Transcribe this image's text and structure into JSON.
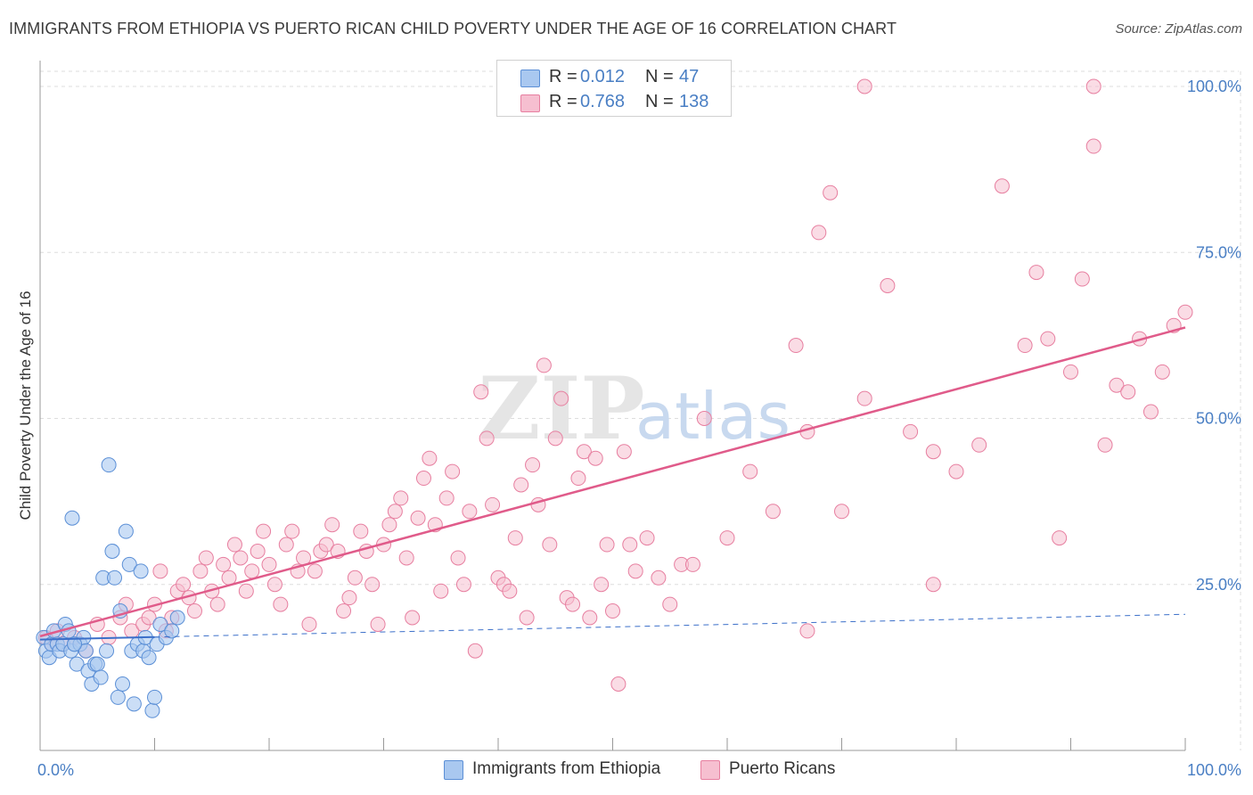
{
  "title": "IMMIGRANTS FROM ETHIOPIA VS PUERTO RICAN CHILD POVERTY UNDER THE AGE OF 16 CORRELATION CHART",
  "source": "Source: ZipAtlas.com",
  "watermark": {
    "zip": "ZIP",
    "atlas": "atlas"
  },
  "colors": {
    "ethiopia_fill": "#a9c8f0",
    "ethiopia_stroke": "#5b8fd6",
    "ethiopia_line": "#3b6fc9",
    "puerto_fill": "#f6bfd0",
    "puerto_stroke": "#e77fa0",
    "puerto_line": "#e05b8a",
    "axis_text": "#4a7fc4",
    "grid": "#dddddd"
  },
  "legend_top": [
    {
      "r_label": "R =",
      "r_value": "0.012",
      "n_label": "N =",
      "n_value": "47"
    },
    {
      "r_label": "R =",
      "r_value": "0.768",
      "n_label": "N =",
      "n_value": "138"
    }
  ],
  "legend_bottom": [
    "Immigrants from Ethiopia",
    "Puerto Ricans"
  ],
  "chart_data": {
    "type": "scatter",
    "title": "IMMIGRANTS FROM ETHIOPIA VS PUERTO RICAN CHILD POVERTY UNDER THE AGE OF 16 CORRELATION CHART",
    "xlabel": "",
    "ylabel": "Child Poverty Under the Age of 16",
    "xlim": [
      0,
      100
    ],
    "ylim": [
      0,
      100
    ],
    "x_tick_labels": [
      "0.0%",
      "100.0%"
    ],
    "y_tick_labels": [
      "25.0%",
      "50.0%",
      "75.0%",
      "100.0%"
    ],
    "y_ticks": [
      25,
      50,
      75,
      100
    ],
    "grid": true,
    "series": [
      {
        "name": "Immigrants from Ethiopia",
        "R": 0.012,
        "N": 47,
        "trend": {
          "x0": 0,
          "y0": 16.7,
          "x1": 100,
          "y1": 20.5,
          "solid_until": 10
        },
        "points": [
          [
            0.3,
            17
          ],
          [
            0.5,
            15
          ],
          [
            0.8,
            14
          ],
          [
            1.0,
            16
          ],
          [
            1.2,
            18
          ],
          [
            1.5,
            16
          ],
          [
            1.7,
            15
          ],
          [
            2.0,
            16
          ],
          [
            2.2,
            19
          ],
          [
            2.5,
            18
          ],
          [
            2.7,
            15
          ],
          [
            3.0,
            16
          ],
          [
            3.2,
            13
          ],
          [
            3.5,
            16
          ],
          [
            3.8,
            17
          ],
          [
            4.0,
            15
          ],
          [
            4.2,
            12
          ],
          [
            4.5,
            10
          ],
          [
            4.8,
            13
          ],
          [
            5.0,
            13
          ],
          [
            5.3,
            11
          ],
          [
            5.5,
            26
          ],
          [
            5.8,
            15
          ],
          [
            6.0,
            43
          ],
          [
            6.3,
            30
          ],
          [
            6.5,
            26
          ],
          [
            6.8,
            8
          ],
          [
            7.0,
            21
          ],
          [
            7.2,
            10
          ],
          [
            7.5,
            33
          ],
          [
            7.8,
            28
          ],
          [
            8.0,
            15
          ],
          [
            8.2,
            7
          ],
          [
            8.5,
            16
          ],
          [
            8.8,
            27
          ],
          [
            9.0,
            15
          ],
          [
            9.2,
            17
          ],
          [
            9.5,
            14
          ],
          [
            9.8,
            6
          ],
          [
            10.0,
            8
          ],
          [
            10.2,
            16
          ],
          [
            10.5,
            19
          ],
          [
            11.0,
            17
          ],
          [
            11.5,
            18
          ],
          [
            12.0,
            20
          ],
          [
            2.8,
            35
          ],
          [
            3.0,
            16
          ]
        ]
      },
      {
        "name": "Puerto Ricans",
        "R": 0.768,
        "N": 138,
        "trend": {
          "x0": 0,
          "y0": 17.2,
          "x1": 100,
          "y1": 63.7
        },
        "points": [
          [
            0.5,
            17
          ],
          [
            1.0,
            16
          ],
          [
            1.5,
            18
          ],
          [
            2.0,
            16
          ],
          [
            3.0,
            17
          ],
          [
            4.0,
            15
          ],
          [
            5.0,
            19
          ],
          [
            6.0,
            17
          ],
          [
            7.0,
            20
          ],
          [
            7.5,
            22
          ],
          [
            8.0,
            18
          ],
          [
            9.0,
            19
          ],
          [
            9.5,
            20
          ],
          [
            10.0,
            22
          ],
          [
            10.5,
            27
          ],
          [
            11.0,
            18
          ],
          [
            11.5,
            20
          ],
          [
            12.0,
            24
          ],
          [
            12.5,
            25
          ],
          [
            13.0,
            23
          ],
          [
            13.5,
            21
          ],
          [
            14.0,
            27
          ],
          [
            14.5,
            29
          ],
          [
            15.0,
            24
          ],
          [
            15.5,
            22
          ],
          [
            16.0,
            28
          ],
          [
            16.5,
            26
          ],
          [
            17.0,
            31
          ],
          [
            17.5,
            29
          ],
          [
            18.0,
            24
          ],
          [
            18.5,
            27
          ],
          [
            19.0,
            30
          ],
          [
            19.5,
            33
          ],
          [
            20.0,
            28
          ],
          [
            20.5,
            25
          ],
          [
            21.0,
            22
          ],
          [
            21.5,
            31
          ],
          [
            22.0,
            33
          ],
          [
            22.5,
            27
          ],
          [
            23.0,
            29
          ],
          [
            23.5,
            19
          ],
          [
            24.0,
            27
          ],
          [
            24.5,
            30
          ],
          [
            25.0,
            31
          ],
          [
            25.5,
            34
          ],
          [
            26.0,
            30
          ],
          [
            26.5,
            21
          ],
          [
            27.0,
            23
          ],
          [
            27.5,
            26
          ],
          [
            28.0,
            33
          ],
          [
            28.5,
            30
          ],
          [
            29.0,
            25
          ],
          [
            29.5,
            19
          ],
          [
            30.0,
            31
          ],
          [
            30.5,
            34
          ],
          [
            31.0,
            36
          ],
          [
            31.5,
            38
          ],
          [
            32.0,
            29
          ],
          [
            32.5,
            20
          ],
          [
            33.0,
            35
          ],
          [
            33.5,
            41
          ],
          [
            34.0,
            44
          ],
          [
            34.5,
            34
          ],
          [
            35.0,
            24
          ],
          [
            35.5,
            38
          ],
          [
            36.0,
            42
          ],
          [
            36.5,
            29
          ],
          [
            37.0,
            25
          ],
          [
            37.5,
            36
          ],
          [
            38.0,
            15
          ],
          [
            38.5,
            54
          ],
          [
            39.0,
            47
          ],
          [
            39.5,
            37
          ],
          [
            40.0,
            26
          ],
          [
            40.5,
            25
          ],
          [
            41.0,
            24
          ],
          [
            41.5,
            32
          ],
          [
            42.0,
            40
          ],
          [
            42.5,
            20
          ],
          [
            43.0,
            43
          ],
          [
            43.5,
            37
          ],
          [
            44.0,
            58
          ],
          [
            44.5,
            31
          ],
          [
            45.0,
            47
          ],
          [
            45.5,
            53
          ],
          [
            46.0,
            23
          ],
          [
            46.5,
            22
          ],
          [
            47.0,
            41
          ],
          [
            47.5,
            45
          ],
          [
            48.0,
            20
          ],
          [
            48.5,
            44
          ],
          [
            49.0,
            25
          ],
          [
            49.5,
            31
          ],
          [
            50.0,
            21
          ],
          [
            50.5,
            10
          ],
          [
            51.0,
            45
          ],
          [
            51.5,
            31
          ],
          [
            52.0,
            27
          ],
          [
            53.0,
            32
          ],
          [
            54.0,
            26
          ],
          [
            55.0,
            22
          ],
          [
            56.0,
            28
          ],
          [
            57.0,
            28
          ],
          [
            58.0,
            50
          ],
          [
            60.0,
            32
          ],
          [
            62.0,
            42
          ],
          [
            64.0,
            36
          ],
          [
            66.0,
            61
          ],
          [
            67.0,
            48
          ],
          [
            68.0,
            78
          ],
          [
            69.0,
            84
          ],
          [
            70.0,
            36
          ],
          [
            72.0,
            53
          ],
          [
            74.0,
            70
          ],
          [
            76.0,
            48
          ],
          [
            78.0,
            25
          ],
          [
            80.0,
            42
          ],
          [
            82.0,
            46
          ],
          [
            84.0,
            85
          ],
          [
            86.0,
            61
          ],
          [
            87.0,
            72
          ],
          [
            88.0,
            62
          ],
          [
            89.0,
            32
          ],
          [
            90.0,
            57
          ],
          [
            91.0,
            71
          ],
          [
            92.0,
            91
          ],
          [
            93.0,
            46
          ],
          [
            94.0,
            55
          ],
          [
            95.0,
            54
          ],
          [
            96.0,
            62
          ],
          [
            97.0,
            51
          ],
          [
            98.0,
            57
          ],
          [
            99.0,
            64
          ],
          [
            100.0,
            66
          ],
          [
            72.0,
            100
          ],
          [
            92.0,
            100
          ],
          [
            67.0,
            18
          ],
          [
            78.0,
            45
          ]
        ]
      }
    ]
  }
}
